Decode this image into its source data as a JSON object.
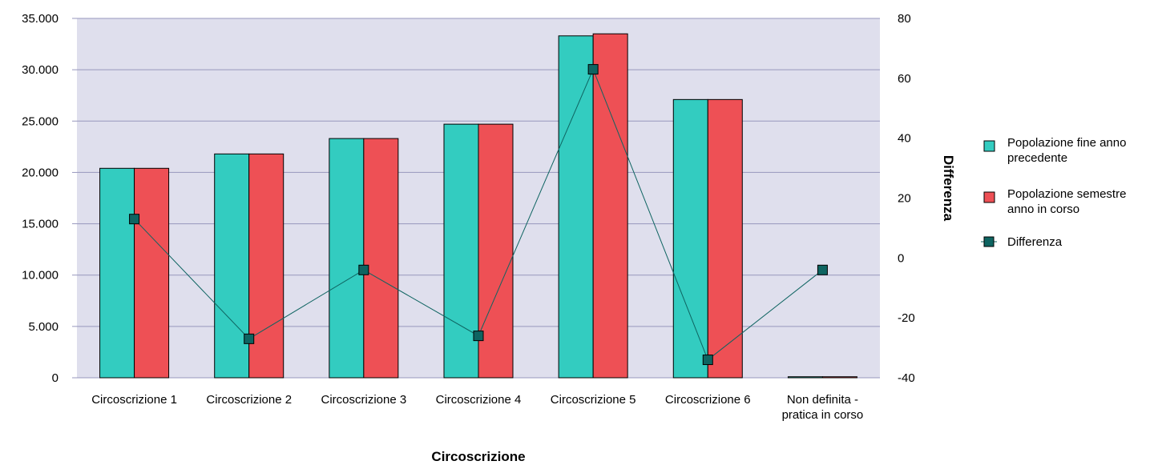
{
  "chart_data": {
    "type": "bar",
    "xlabel": "Circoscrizione",
    "ylabel": "",
    "y2label": "Differenza",
    "categories": [
      [
        "Circoscrizione 1"
      ],
      [
        "Circoscrizione 2"
      ],
      [
        "Circoscrizione 3"
      ],
      [
        "Circoscrizione 4"
      ],
      [
        "Circoscrizione 5"
      ],
      [
        "Circoscrizione 6"
      ],
      [
        "Non definita -",
        "pratica in corso"
      ]
    ],
    "ylim": [
      0,
      35000
    ],
    "y2lim": [
      -40,
      80
    ],
    "yticks": [
      "0",
      "5.000",
      "10.000",
      "15.000",
      "20.000",
      "25.000",
      "30.000",
      "35.000"
    ],
    "y2ticks": [
      "-40",
      "-20",
      "0",
      "20",
      "40",
      "60",
      "80"
    ],
    "grid": true,
    "legend_position": "right",
    "series": [
      {
        "name": "Popolazione fine anno precedente",
        "legend_lines": [
          "Popolazione fine anno",
          "precedente"
        ],
        "type": "bar",
        "axis": "left",
        "color": "#33ccc0",
        "values": [
          20400,
          21800,
          23300,
          24700,
          33300,
          27100,
          100
        ]
      },
      {
        "name": "Popolazione semestre anno in corso",
        "legend_lines": [
          "Popolazione semestre",
          "anno in corso"
        ],
        "type": "bar",
        "axis": "left",
        "color": "#ee5055",
        "values": [
          20400,
          21800,
          23300,
          24700,
          33500,
          27100,
          100
        ]
      },
      {
        "name": "Differenza",
        "legend_lines": [
          "Differenza"
        ],
        "type": "line",
        "axis": "right",
        "color": "#0e6461",
        "values": [
          13,
          -27,
          -4,
          -26,
          63,
          -34,
          -4
        ]
      }
    ]
  }
}
